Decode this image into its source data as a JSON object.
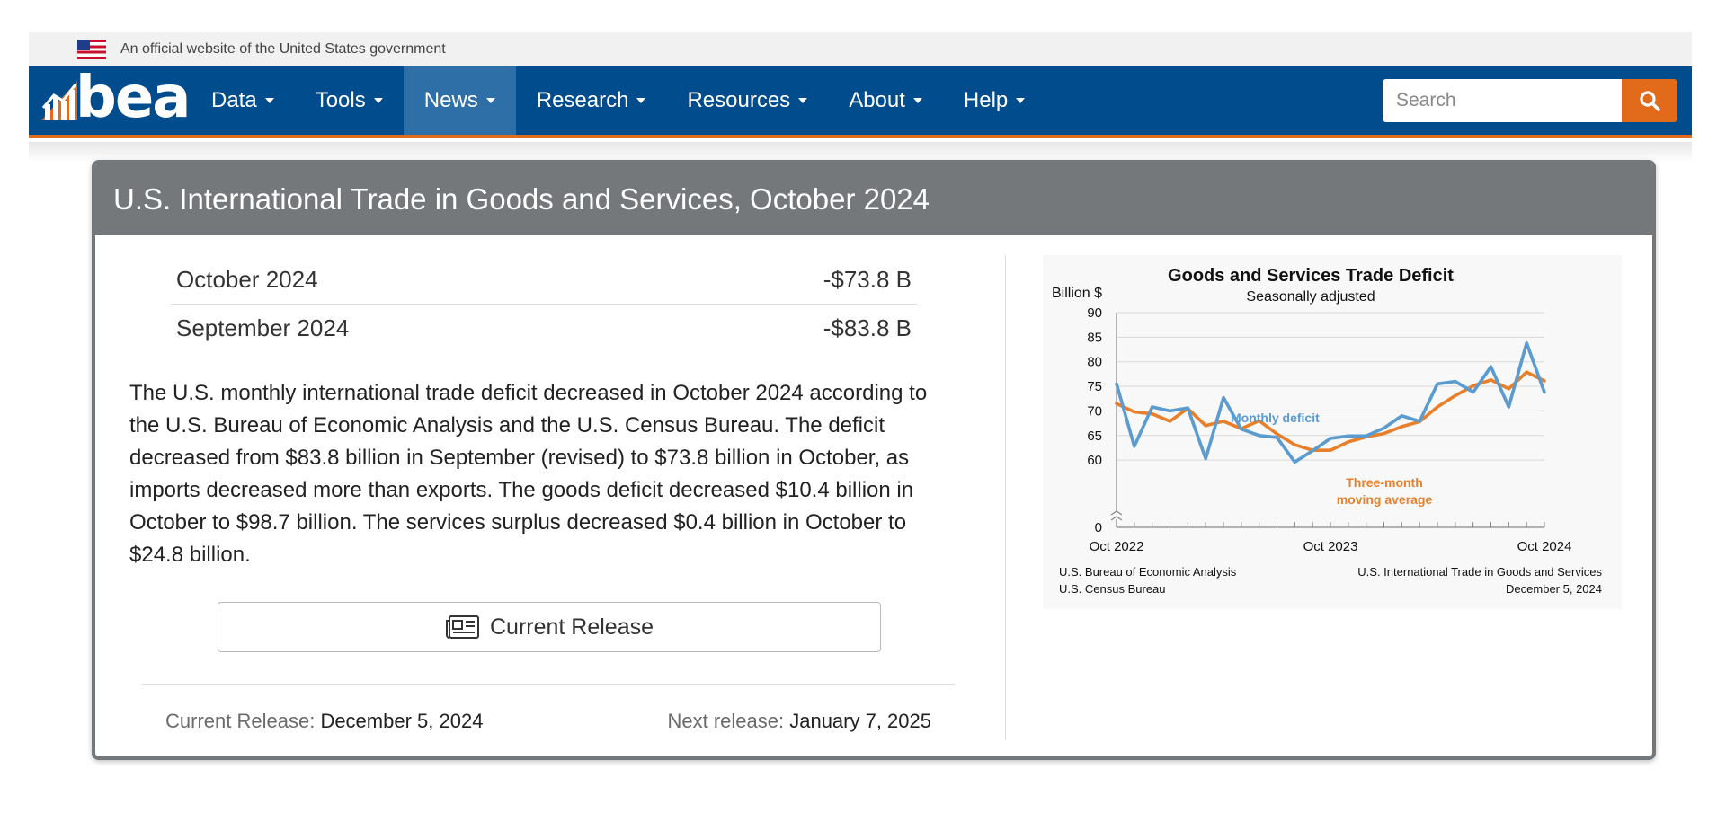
{
  "gov_banner": {
    "text": "An official website of the United States government"
  },
  "nav": {
    "logo": "bea",
    "items": [
      {
        "label": "Data",
        "active": false
      },
      {
        "label": "Tools",
        "active": false
      },
      {
        "label": "News",
        "active": true
      },
      {
        "label": "Research",
        "active": false
      },
      {
        "label": "Resources",
        "active": false
      },
      {
        "label": "About",
        "active": false
      },
      {
        "label": "Help",
        "active": false
      }
    ],
    "search_placeholder": "Search",
    "colors": {
      "nav_bg": "#004c8c",
      "accent": "#e26a1b",
      "active_bg": "#2f6fa7"
    }
  },
  "card": {
    "title": "U.S. International Trade in Goods and Services, October 2024",
    "stats": [
      {
        "period": "October 2024",
        "value": "-$73.8 B"
      },
      {
        "period": "September 2024",
        "value": "-$83.8 B"
      }
    ],
    "summary": "The U.S. monthly international trade deficit decreased in October 2024 according to the U.S. Bureau of Economic Analysis and the U.S. Census Bureau. The deficit decreased from $83.8 billion in September (revised) to $73.8 billion in October, as imports decreased more than exports. The goods deficit decreased $10.4 billion in October to $98.7 billion. The services surplus decreased $0.4 billion in October to $24.8 billion.",
    "release_button": "Current Release",
    "current_release_label": "Current Release:",
    "current_release_date": "December 5, 2024",
    "next_release_label": "Next release:",
    "next_release_date": "January 7, 2025"
  },
  "chart_data": {
    "type": "line",
    "title": "Goods and Services Trade Deficit",
    "subtitle": "Seasonally adjusted",
    "ylabel": "Billion $",
    "ylim": [
      0,
      90
    ],
    "y_ticks": [
      0,
      60,
      65,
      70,
      75,
      80,
      85,
      90
    ],
    "y_axis_break": true,
    "x_tick_labels": [
      "Oct 2022",
      "Oct 2023",
      "Oct 2024"
    ],
    "x_tick_label_index": [
      0,
      12,
      24
    ],
    "grid": true,
    "series": [
      {
        "name": "Monthly deficit",
        "color": "#5a9bd0",
        "values": [
          75.5,
          62.8,
          70.8,
          70.0,
          70.6,
          60.3,
          72.7,
          66.3,
          65.0,
          64.6,
          59.6,
          61.9,
          64.4,
          64.9,
          64.9,
          66.5,
          69.0,
          67.9,
          75.5,
          76.0,
          73.8,
          79.0,
          70.8,
          83.8,
          73.8
        ]
      },
      {
        "name": "Three-month moving average",
        "color": "#e8802b",
        "values": [
          71.5,
          69.8,
          69.4,
          67.9,
          70.5,
          67.0,
          67.9,
          66.4,
          68.0,
          65.3,
          63.1,
          62.0,
          62.0,
          63.7,
          64.7,
          65.4,
          66.8,
          67.8,
          70.8,
          73.1,
          75.1,
          76.3,
          74.5,
          77.9,
          76.1
        ]
      }
    ],
    "labels": {
      "monthly": "Monthly deficit",
      "ma_line1": "Three-month",
      "ma_line2": "moving average"
    },
    "source_left": [
      "U.S. Bureau of Economic Analysis",
      "U.S. Census Bureau"
    ],
    "source_right": [
      "U.S. International Trade in Goods and Services",
      "December 5, 2024"
    ]
  }
}
